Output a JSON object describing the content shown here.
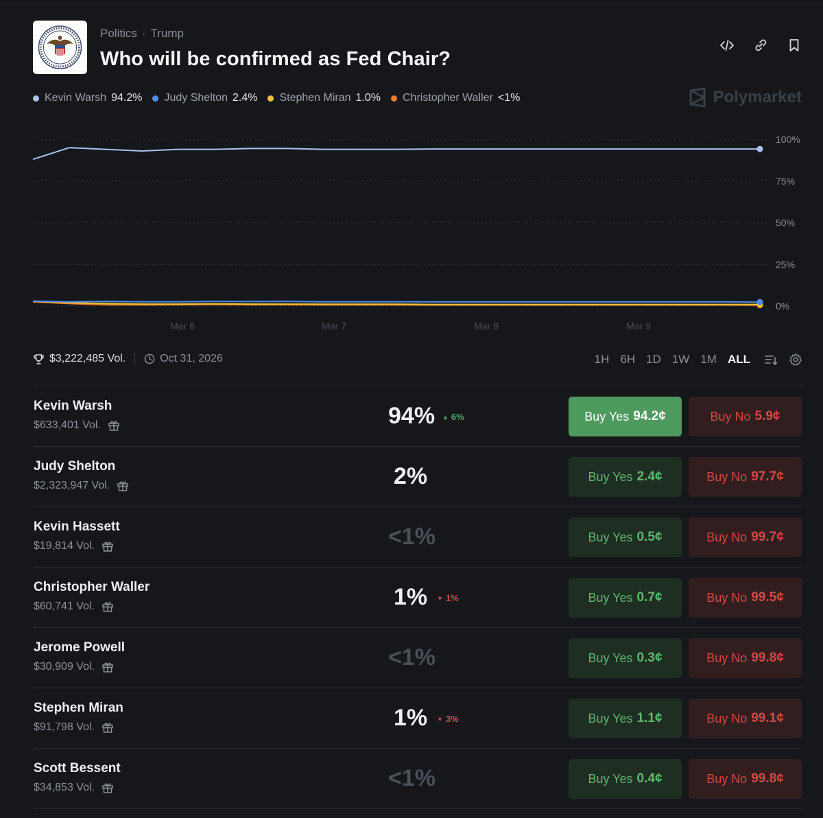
{
  "breadcrumbs": {
    "category": "Politics",
    "separator": "·",
    "tag": "Trump"
  },
  "title": "Who will be confirmed as Fed Chair?",
  "brand": "Polymarket",
  "legend": [
    {
      "name": "Kevin Warsh",
      "value": "94.2%",
      "color": "#a9c3f5"
    },
    {
      "name": "Judy Shelton",
      "value": "2.4%",
      "color": "#4a8ef0"
    },
    {
      "name": "Stephen Miran",
      "value": "1.0%",
      "color": "#f2c230"
    },
    {
      "name": "Christopher Waller",
      "value": "<1%",
      "color": "#f07e2a"
    }
  ],
  "chart_data": {
    "type": "line",
    "x_ticks": [
      "Mar 6",
      "Mar 7",
      "Mar 8",
      "Mar 9"
    ],
    "y_ticks": [
      "100%",
      "75%",
      "50%",
      "25%",
      "0%"
    ],
    "ylim": [
      0,
      100
    ],
    "grid": true,
    "series": [
      {
        "name": "Kevin Warsh",
        "color": "#a9c3f5",
        "values": [
          88,
          95,
          94,
          93,
          94,
          94,
          94.5,
          94.5,
          94,
          94,
          94,
          94.2,
          94.2,
          94.2,
          94.2,
          94.2,
          94.2,
          94.2,
          94.2,
          94.2,
          94.2
        ]
      },
      {
        "name": "Judy Shelton",
        "color": "#4a8ef0",
        "values": [
          3,
          2.5,
          2.8,
          2.6,
          2.6,
          2.8,
          2.7,
          2.8,
          2.6,
          2.6,
          2.6,
          2.5,
          2.5,
          2.5,
          2.5,
          2.5,
          2.5,
          2.5,
          2.5,
          2.5,
          2.4
        ]
      },
      {
        "name": "Stephen Miran",
        "color": "#f2c230",
        "values": [
          3,
          2,
          1.5,
          1.2,
          1.2,
          1.3,
          1.2,
          1.2,
          1.1,
          1.1,
          1.1,
          1,
          1,
          1,
          1,
          1,
          1,
          1,
          1,
          1,
          1.0
        ]
      },
      {
        "name": "Christopher Waller",
        "color": "#f07e2a",
        "values": [
          2.5,
          1.5,
          0.8,
          0.7,
          0.8,
          0.9,
          0.8,
          0.8,
          0.7,
          0.7,
          0.7,
          0.6,
          0.6,
          0.6,
          0.6,
          0.6,
          0.6,
          0.6,
          0.6,
          0.6,
          0.5
        ]
      }
    ]
  },
  "meta": {
    "volume": "$3,222,485 Vol.",
    "end_date": "Oct 31, 2026"
  },
  "timeframes": [
    {
      "label": "1H",
      "active": false
    },
    {
      "label": "6H",
      "active": false
    },
    {
      "label": "1D",
      "active": false
    },
    {
      "label": "1W",
      "active": false
    },
    {
      "label": "1M",
      "active": false
    },
    {
      "label": "ALL",
      "active": true
    }
  ],
  "outcomes": [
    {
      "name": "Kevin Warsh",
      "volume": "$633,401 Vol.",
      "percent": "94%",
      "change": "6%",
      "change_dir": "up",
      "muted": false,
      "yes_label": "Buy Yes",
      "yes_price": "94.2¢",
      "no_label": "Buy No",
      "no_price": "5.9¢",
      "primary": true
    },
    {
      "name": "Judy Shelton",
      "volume": "$2,323,947 Vol.",
      "percent": "2%",
      "change": "",
      "change_dir": "",
      "muted": false,
      "yes_label": "Buy Yes",
      "yes_price": "2.4¢",
      "no_label": "Buy No",
      "no_price": "97.7¢",
      "primary": false
    },
    {
      "name": "Kevin Hassett",
      "volume": "$19,814 Vol.",
      "percent": "<1%",
      "change": "",
      "change_dir": "",
      "muted": true,
      "yes_label": "Buy Yes",
      "yes_price": "0.5¢",
      "no_label": "Buy No",
      "no_price": "99.7¢",
      "primary": false
    },
    {
      "name": "Christopher Waller",
      "volume": "$60,741 Vol.",
      "percent": "1%",
      "change": "1%",
      "change_dir": "down",
      "muted": false,
      "yes_label": "Buy Yes",
      "yes_price": "0.7¢",
      "no_label": "Buy No",
      "no_price": "99.5¢",
      "primary": false
    },
    {
      "name": "Jerome Powell",
      "volume": "$30,909 Vol.",
      "percent": "<1%",
      "change": "",
      "change_dir": "",
      "muted": true,
      "yes_label": "Buy Yes",
      "yes_price": "0.3¢",
      "no_label": "Buy No",
      "no_price": "99.8¢",
      "primary": false
    },
    {
      "name": "Stephen Miran",
      "volume": "$91,798 Vol.",
      "percent": "1%",
      "change": "3%",
      "change_dir": "down",
      "muted": false,
      "yes_label": "Buy Yes",
      "yes_price": "1.1¢",
      "no_label": "Buy No",
      "no_price": "99.1¢",
      "primary": false
    },
    {
      "name": "Scott Bessent",
      "volume": "$34,853 Vol.",
      "percent": "<1%",
      "change": "",
      "change_dir": "",
      "muted": true,
      "yes_label": "Buy Yes",
      "yes_price": "0.4¢",
      "no_label": "Buy No",
      "no_price": "99.8¢",
      "primary": false
    }
  ]
}
